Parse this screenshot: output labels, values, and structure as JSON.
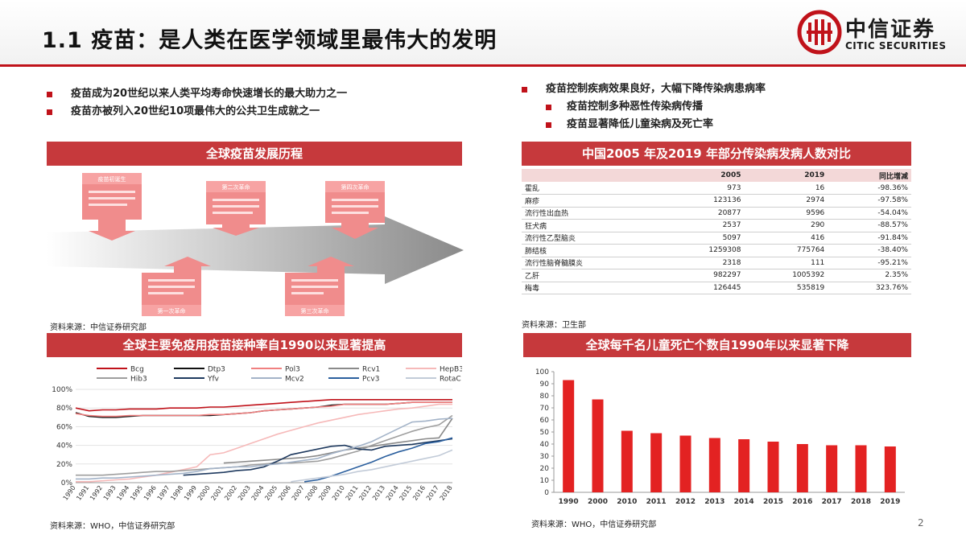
{
  "page": {
    "title": "1.1 疫苗：是人类在医学领域里最伟大的发明",
    "logo_cn": "中信证券",
    "logo_en": "CITIC SECURITIES",
    "page_number": "2",
    "brand_color": "#c0121a"
  },
  "left_bullets": [
    "疫苗成为20世纪以来人类平均寿命快速增长的最大助力之一",
    "疫苗亦被列入20世纪10项最伟大的公共卫生成就之一"
  ],
  "right_bullets": {
    "main": "疫苗控制疾病效果良好，大幅下降传染病患病率",
    "subs": [
      "疫苗控制多种恶性传染病传播",
      "疫苗显著降低儿童染病及死亡率"
    ]
  },
  "timeline": {
    "banner": "全球疫苗发展历程",
    "source": "资料来源：中信证券研究部",
    "callouts": [
      {
        "label": "疫苗初诞生",
        "pos": "top"
      },
      {
        "label": "第二次革命",
        "pos": "top"
      },
      {
        "label": "第四次革命",
        "pos": "top"
      },
      {
        "label": "第一次革命",
        "pos": "bottom"
      },
      {
        "label": "第三次革命",
        "pos": "bottom"
      }
    ]
  },
  "table": {
    "banner": "中国2005 年及2019 年部分传染病发病人数对比",
    "headers": [
      "",
      "2005",
      "2019",
      "同比增减"
    ],
    "rows": [
      [
        "霍乱",
        "973",
        "16",
        "-98.36%"
      ],
      [
        "麻疹",
        "123136",
        "2974",
        "-97.58%"
      ],
      [
        "流行性出血热",
        "20877",
        "9596",
        "-54.04%"
      ],
      [
        "狂犬病",
        "2537",
        "290",
        "-88.57%"
      ],
      [
        "流行性乙型脑炎",
        "5097",
        "416",
        "-91.84%"
      ],
      [
        "肺结核",
        "1259308",
        "775764",
        "-38.40%"
      ],
      [
        "流行性脑脊髓膜炎",
        "2318",
        "111",
        "-95.21%"
      ],
      [
        "乙肝",
        "982297",
        "1005392",
        "2.35%"
      ],
      [
        "梅毒",
        "126445",
        "535819",
        "323.76%"
      ]
    ],
    "source": "资料来源：卫生部"
  },
  "chart_data": [
    {
      "type": "line",
      "title": "全球主要免疫用疫苗接种率自1990以来显著提高",
      "x": [
        "1990",
        "1991",
        "1992",
        "1993",
        "1994",
        "1995",
        "1996",
        "1997",
        "1998",
        "1999",
        "2000",
        "2001",
        "2002",
        "2003",
        "2004",
        "2005",
        "2006",
        "2007",
        "2008",
        "2009",
        "2010",
        "2011",
        "2012",
        "2013",
        "2014",
        "2015",
        "2016",
        "2017",
        "2018"
      ],
      "ylim": [
        0,
        100
      ],
      "yticks": [
        "0%",
        "20%",
        "40%",
        "60%",
        "80%",
        "100%"
      ],
      "legend": "top",
      "series": [
        {
          "name": "Bcg",
          "color": "#c0121a",
          "values": [
            80,
            77,
            78,
            78,
            79,
            79,
            79,
            80,
            80,
            80,
            81,
            81,
            82,
            83,
            84,
            85,
            86,
            87,
            88,
            89,
            89,
            89,
            89,
            89,
            89,
            89,
            89,
            89,
            89
          ]
        },
        {
          "name": "Dtp3",
          "color": "#111111",
          "values": [
            75,
            71,
            70,
            70,
            71,
            72,
            72,
            72,
            72,
            72,
            72,
            73,
            74,
            75,
            77,
            78,
            79,
            80,
            81,
            83,
            84,
            84,
            84,
            84,
            85,
            86,
            86,
            86,
            86
          ]
        },
        {
          "name": "Pol3",
          "color": "#f08080",
          "values": [
            74,
            72,
            71,
            71,
            72,
            72,
            72,
            72,
            72,
            72,
            73,
            73,
            74,
            75,
            77,
            78,
            79,
            80,
            81,
            82,
            84,
            84,
            84,
            84,
            85,
            86,
            86,
            86,
            86
          ]
        },
        {
          "name": "Rcv1",
          "color": "#8a8a8a",
          "values": [
            null,
            null,
            null,
            null,
            null,
            null,
            null,
            null,
            null,
            null,
            null,
            21,
            22,
            23,
            24,
            25,
            26,
            27,
            29,
            32,
            35,
            37,
            39,
            41,
            43,
            45,
            47,
            48,
            69
          ]
        },
        {
          "name": "HepB3",
          "color": "#f6b9b9",
          "values": [
            1,
            1,
            2,
            3,
            4,
            6,
            8,
            11,
            14,
            17,
            30,
            32,
            37,
            42,
            47,
            52,
            56,
            60,
            64,
            67,
            70,
            73,
            75,
            77,
            79,
            80,
            82,
            84,
            84
          ]
        },
        {
          "name": "Hib3",
          "color": "#9e9e9e",
          "values": [
            8,
            8,
            8,
            9,
            10,
            11,
            12,
            12,
            13,
            14,
            15,
            16,
            17,
            19,
            20,
            21,
            21,
            22,
            23,
            26,
            30,
            34,
            40,
            45,
            50,
            55,
            59,
            62,
            72
          ]
        },
        {
          "name": "Yfv",
          "color": "#1f3a5f",
          "values": [
            null,
            null,
            null,
            null,
            null,
            null,
            null,
            null,
            8,
            9,
            10,
            11,
            13,
            14,
            17,
            23,
            30,
            33,
            36,
            39,
            40,
            36,
            35,
            39,
            40,
            41,
            43,
            45,
            47
          ]
        },
        {
          "name": "Mcv2",
          "color": "#a3b3c8",
          "values": [
            4,
            4,
            5,
            5,
            6,
            7,
            8,
            9,
            10,
            12,
            15,
            16,
            17,
            17,
            19,
            20,
            22,
            24,
            26,
            31,
            35,
            39,
            44,
            51,
            58,
            65,
            66,
            68,
            69
          ]
        },
        {
          "name": "Pcv3",
          "color": "#2b5f9e",
          "values": [
            null,
            null,
            null,
            null,
            null,
            null,
            null,
            null,
            null,
            null,
            null,
            null,
            null,
            null,
            null,
            null,
            null,
            1,
            3,
            7,
            12,
            17,
            22,
            28,
            33,
            37,
            42,
            44,
            48
          ]
        },
        {
          "name": "RotaC",
          "color": "#c2cbd8",
          "values": [
            null,
            null,
            null,
            null,
            null,
            null,
            null,
            null,
            null,
            null,
            null,
            null,
            null,
            null,
            null,
            null,
            1,
            3,
            5,
            7,
            9,
            12,
            14,
            17,
            20,
            23,
            26,
            29,
            35
          ]
        }
      ],
      "source": "资料来源：WHO，中信证券研究部"
    },
    {
      "type": "bar",
      "title": "全球每千名儿童死亡个数自1990年以来显著下降",
      "categories": [
        "1990",
        "2000",
        "2010",
        "2011",
        "2012",
        "2013",
        "2014",
        "2015",
        "2016",
        "2017",
        "2018",
        "2019"
      ],
      "values": [
        93,
        77,
        51,
        49,
        47,
        45,
        44,
        42,
        40,
        39,
        39,
        38
      ],
      "ylim": [
        0,
        100
      ],
      "yticks": [
        "0",
        "10",
        "20",
        "30",
        "40",
        "50",
        "60",
        "70",
        "80",
        "90",
        "100"
      ],
      "color": "#e32222",
      "source": "资料来源：WHO，中信证券研究部"
    }
  ]
}
